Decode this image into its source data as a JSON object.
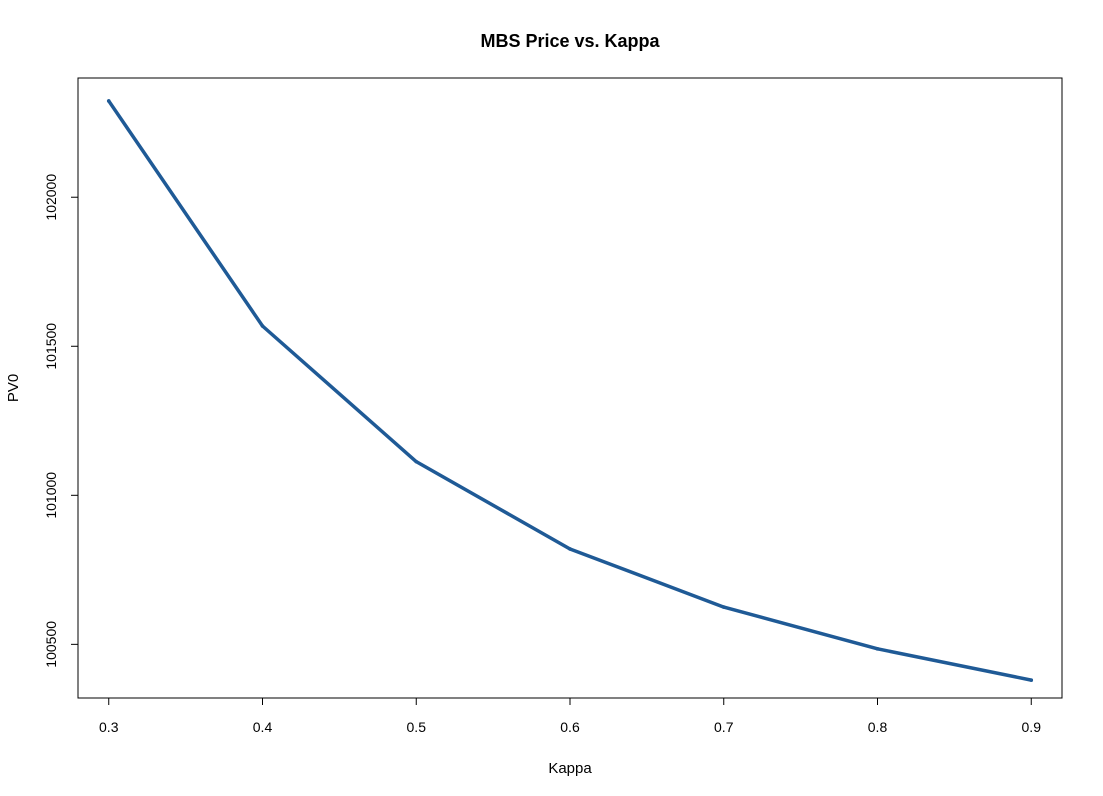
{
  "chart_data": {
    "type": "line",
    "title": "MBS Price vs. Kappa",
    "xlabel": "Kappa",
    "ylabel": "PV0",
    "x": [
      0.3,
      0.4,
      0.5,
      0.6,
      0.7,
      0.8,
      0.9
    ],
    "series": [
      {
        "values": [
          102323,
          101568,
          101113,
          100820,
          100625,
          100485,
          100380
        ],
        "color": "#1f5a96"
      }
    ],
    "xlim": [
      0.28,
      0.92
    ],
    "ylim": [
      100320,
      102400
    ],
    "xticks": [
      "0.3",
      "0.4",
      "0.5",
      "0.6",
      "0.7",
      "0.8",
      "0.9"
    ],
    "yticks": [
      "100500",
      "101000",
      "101500",
      "102000"
    ],
    "grid": false,
    "legend": "none"
  }
}
